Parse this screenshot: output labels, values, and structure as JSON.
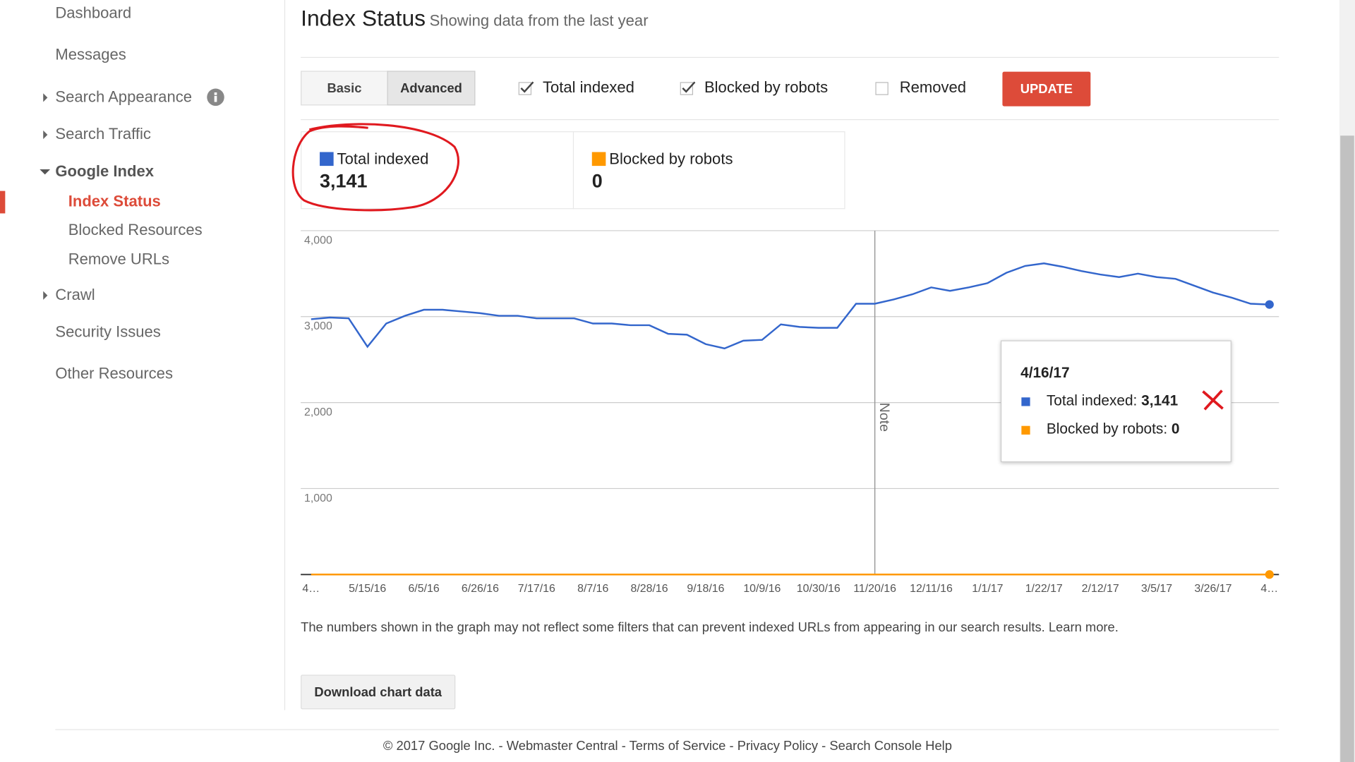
{
  "sidebar": {
    "items": [
      "Dashboard",
      "Messages",
      "Search Appearance",
      "Search Traffic",
      "Google Index",
      "Index Status",
      "Blocked Resources",
      "Remove URLs",
      "Crawl",
      "Security Issues",
      "Other Resources"
    ]
  },
  "header": {
    "title": "Index Status",
    "subtitle": "Showing data from the last year"
  },
  "tabs": [
    "Basic",
    "Advanced"
  ],
  "checkboxes": [
    "Total indexed",
    "Blocked by robots",
    "Removed"
  ],
  "update_button": "UPDATE",
  "summary": [
    {
      "label": "Total indexed",
      "value": "3,141"
    },
    {
      "label": "Blocked by robots",
      "value": "0"
    }
  ],
  "chart_data": {
    "type": "line",
    "categories": [
      "4…",
      null,
      null,
      "5/15/16",
      null,
      null,
      "6/5/16",
      null,
      null,
      "6/26/16",
      null,
      null,
      "7/17/16",
      null,
      null,
      "8/7/16",
      null,
      null,
      "8/28/16",
      null,
      null,
      "9/18/16",
      null,
      null,
      "10/9/16",
      null,
      null,
      "10/30/16",
      null,
      null,
      "11/20/16",
      null,
      null,
      "12/11/16",
      null,
      null,
      "1/1/17",
      null,
      null,
      "1/22/17",
      null,
      null,
      "2/12/17",
      null,
      null,
      "3/5/17",
      null,
      null,
      "3/26/17",
      null,
      null,
      "4…"
    ],
    "series": [
      {
        "name": "Total indexed",
        "color": "#3366cc",
        "values": [
          2970,
          2990,
          2980,
          2650,
          2920,
          3010,
          3080,
          3080,
          3060,
          3040,
          3010,
          3010,
          2980,
          2980,
          2980,
          2920,
          2920,
          2900,
          2900,
          2800,
          2790,
          2680,
          2630,
          2720,
          2730,
          2910,
          2880,
          2870,
          2870,
          3150,
          3150,
          3200,
          3260,
          3340,
          3300,
          3340,
          3390,
          3510,
          3590,
          3620,
          3580,
          3530,
          3490,
          3460,
          3500,
          3460,
          3440,
          3360,
          3280,
          3220,
          3150,
          3141
        ]
      },
      {
        "name": "Blocked by robots",
        "color": "#ff9900",
        "values": [
          0,
          0,
          0,
          0,
          0,
          0,
          0,
          0,
          0,
          0,
          0,
          0,
          0,
          0,
          0,
          0,
          0,
          0,
          0,
          0,
          0,
          0,
          0,
          0,
          0,
          0,
          0,
          0,
          0,
          0,
          0,
          0,
          0,
          0,
          0,
          0,
          0,
          0,
          0,
          0,
          0,
          0,
          0,
          0,
          0,
          0,
          0,
          0,
          0,
          0,
          0,
          0
        ]
      }
    ],
    "ylim": [
      0,
      4000
    ],
    "yticks": [
      {
        "value": 1000,
        "label": "1,000"
      },
      {
        "value": 2000,
        "label": "2,000"
      },
      {
        "value": 3000,
        "label": "3,000"
      },
      {
        "value": 4000,
        "label": "4,000"
      }
    ],
    "grid": true,
    "annotation": {
      "label": "Note",
      "x": "11/20/16"
    }
  },
  "tooltip": {
    "date": "4/16/17",
    "rows": [
      {
        "label": "Total indexed: ",
        "value": "3,141"
      },
      {
        "label": "Blocked by robots: ",
        "value": "0"
      }
    ]
  },
  "footnote": "The numbers shown in the graph may not reflect some filters that can prevent indexed URLs from appearing in our search results. Learn more.",
  "download_button": "Download chart data",
  "footer": {
    "items": [
      "© 2017 Google Inc.",
      "Webmaster Central",
      "Terms of Service",
      "Privacy Policy",
      "Search Console Help"
    ],
    "separator": " - "
  }
}
